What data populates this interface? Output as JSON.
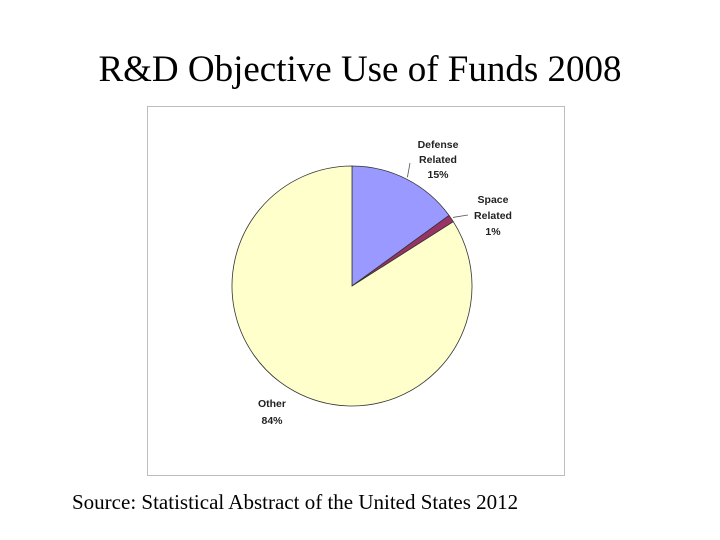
{
  "slide": {
    "title": "R&D Objective Use of Funds 2008",
    "source": "Source: Statistical Abstract of the United States 2012"
  },
  "chart_data": {
    "type": "pie",
    "title": "",
    "start": "12 o'clock, clockwise",
    "slices": [
      {
        "line1": "Defense",
        "line2": "Related",
        "pct_label": "15%",
        "value": 15,
        "color": "#9999ff"
      },
      {
        "line1": "Space",
        "line2": "Related",
        "pct_label": "1%",
        "value": 1,
        "color": "#993366"
      },
      {
        "line1": "Other",
        "line2": "",
        "pct_label": "84%",
        "value": 84,
        "color": "#ffffcc"
      }
    ]
  }
}
